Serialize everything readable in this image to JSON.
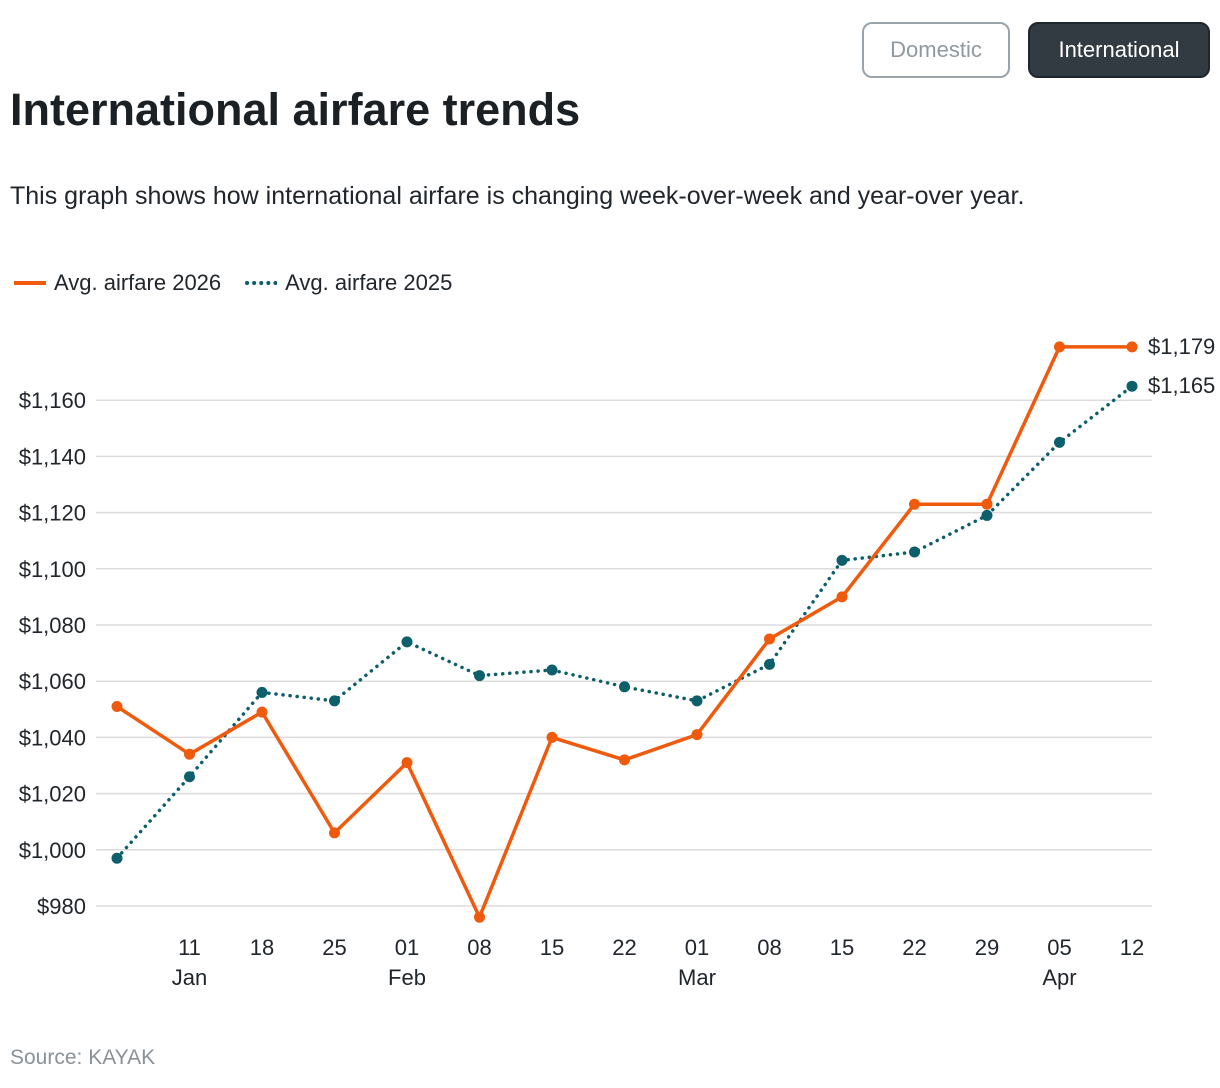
{
  "toggle": {
    "domestic_label": "Domestic",
    "international_label": "International",
    "selected": "International"
  },
  "header": {
    "title": "International airfare trends",
    "subtitle": "This graph shows how international airfare is changing week-over-week and year-over year."
  },
  "footer": {
    "source": "Source: KAYAK"
  },
  "colors": {
    "series_2026": "#ef5a0d",
    "series_2025": "#0d5f6b",
    "grid": "#dcdcdc"
  },
  "chart_data": {
    "type": "line",
    "x_ticks": [
      {
        "day": "11",
        "month": "Jan"
      },
      {
        "day": "18",
        "month": ""
      },
      {
        "day": "25",
        "month": ""
      },
      {
        "day": "01",
        "month": "Feb"
      },
      {
        "day": "08",
        "month": ""
      },
      {
        "day": "15",
        "month": ""
      },
      {
        "day": "22",
        "month": ""
      },
      {
        "day": "01",
        "month": "Mar"
      },
      {
        "day": "08",
        "month": ""
      },
      {
        "day": "15",
        "month": ""
      },
      {
        "day": "22",
        "month": ""
      },
      {
        "day": "29",
        "month": ""
      },
      {
        "day": "05",
        "month": "Apr"
      },
      {
        "day": "12",
        "month": ""
      }
    ],
    "y_ticks": [
      "$980",
      "$1,000",
      "$1,020",
      "$1,040",
      "$1,060",
      "$1,080",
      "$1,100",
      "$1,120",
      "$1,140",
      "$1,160"
    ],
    "ylim": [
      975,
      1185
    ],
    "grid": true,
    "legend_position": "top-left",
    "series": [
      {
        "name": "Avg. airfare 2026",
        "style": "solid",
        "color": "#ef5a0d",
        "points": [
          {
            "x": "Jan 04",
            "y": 1051
          },
          {
            "x": "Jan 11",
            "y": 1034
          },
          {
            "x": "Jan 18",
            "y": 1049
          },
          {
            "x": "Jan 25",
            "y": 1006
          },
          {
            "x": "Feb 01",
            "y": 1031
          },
          {
            "x": "Feb 08",
            "y": 976
          },
          {
            "x": "Feb 15",
            "y": 1040
          },
          {
            "x": "Feb 22",
            "y": 1032
          },
          {
            "x": "Mar 01",
            "y": 1041
          },
          {
            "x": "Mar 08",
            "y": 1075
          },
          {
            "x": "Mar 15",
            "y": 1090
          },
          {
            "x": "Mar 22",
            "y": 1123
          },
          {
            "x": "Mar 29",
            "y": 1123
          },
          {
            "x": "Apr 05",
            "y": 1179
          },
          {
            "x": "Apr 12",
            "y": 1179
          }
        ],
        "end_label": "$1,179"
      },
      {
        "name": "Avg. airfare 2025",
        "style": "dotted",
        "color": "#0d5f6b",
        "points": [
          {
            "x": "Jan 04",
            "y": 997
          },
          {
            "x": "Jan 11",
            "y": 1026
          },
          {
            "x": "Jan 18",
            "y": 1056
          },
          {
            "x": "Jan 25",
            "y": 1053
          },
          {
            "x": "Feb 01",
            "y": 1074
          },
          {
            "x": "Feb 08",
            "y": 1062
          },
          {
            "x": "Feb 15",
            "y": 1064
          },
          {
            "x": "Feb 22",
            "y": 1058
          },
          {
            "x": "Mar 01",
            "y": 1053
          },
          {
            "x": "Mar 08",
            "y": 1066
          },
          {
            "x": "Mar 15",
            "y": 1103
          },
          {
            "x": "Mar 22",
            "y": 1106
          },
          {
            "x": "Mar 29",
            "y": 1119
          },
          {
            "x": "Apr 05",
            "y": 1145
          },
          {
            "x": "Apr 12",
            "y": 1165
          }
        ],
        "end_label": "$1,165"
      }
    ]
  }
}
